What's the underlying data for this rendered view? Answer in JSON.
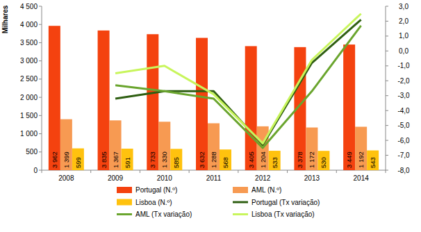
{
  "chart_data": {
    "type": "bar",
    "y_label": "Milhares",
    "categories": [
      "2008",
      "2009",
      "2010",
      "2011",
      "2012",
      "2013",
      "2014"
    ],
    "ylim": [
      0,
      4500
    ],
    "yticks": [
      0,
      500,
      {
        "value": 1000,
        "label": "1 000"
      },
      {
        "value": 1500,
        "label": "1 500"
      },
      {
        "value": 2000,
        "label": "2 000"
      },
      {
        "value": 2500,
        "label": "2 500"
      },
      {
        "value": 3000,
        "label": "3 000"
      },
      {
        "value": 3500,
        "label": "3 500"
      },
      {
        "value": 4000,
        "label": "4 000"
      },
      {
        "value": 4500,
        "label": "4 500"
      }
    ],
    "y2lim": [
      -8,
      3
    ],
    "y2ticks": [
      {
        "value": 3,
        "label": "3,0"
      },
      {
        "value": 2,
        "label": "2,0"
      },
      {
        "value": 1,
        "label": "1,0"
      },
      {
        "value": 0,
        "label": "0,0"
      },
      {
        "value": -1,
        "label": "-1,0"
      },
      {
        "value": -2,
        "label": "-2,0"
      },
      {
        "value": -3,
        "label": "-3,0"
      },
      {
        "value": -4,
        "label": "-4,0"
      },
      {
        "value": -5,
        "label": "-5,0"
      },
      {
        "value": -6,
        "label": "-6,0"
      },
      {
        "value": -7,
        "label": "-7,0"
      },
      {
        "value": -8,
        "label": "-8,0"
      }
    ],
    "grid": false,
    "legend": "bottom",
    "data_labels": true,
    "series": [
      {
        "name": "Portugal (N.º)",
        "type": "bar",
        "color": "#f4420f",
        "values": [
          3962,
          3835,
          3733,
          3632,
          3405,
          3378,
          3449
        ],
        "value_labels": [
          "3 962",
          "3 835",
          "3 733",
          "3 632",
          "3 405",
          "3 378",
          "3 449"
        ]
      },
      {
        "name": "AML (N.º)",
        "type": "bar",
        "color": "#f79a52",
        "values": [
          1399,
          1367,
          1330,
          1288,
          1204,
          1172,
          1192
        ],
        "value_labels": [
          "1 399",
          "1 367",
          "1 330",
          "1 288",
          "1 204",
          "1 172",
          "1 192"
        ]
      },
      {
        "name": "Lisboa (N.º)",
        "type": "bar",
        "color": "#ffc20e",
        "values": [
          599,
          591,
          585,
          568,
          533,
          530,
          543
        ]
      },
      {
        "name": "Portugal (Tx variação)",
        "type": "line",
        "axis": "y2",
        "color": "#2f5f12",
        "values": [
          null,
          -3.2,
          -2.7,
          -2.7,
          -6.3,
          -0.8,
          2.1
        ]
      },
      {
        "name": "AML (Tx variação)",
        "type": "line",
        "axis": "y2",
        "color": "#6aa52e",
        "values": [
          null,
          -2.3,
          -2.7,
          -3.2,
          -6.5,
          -2.7,
          1.7
        ]
      },
      {
        "name": "Lisboa (Tx variação)",
        "type": "line",
        "axis": "y2",
        "color": "#c8f55c",
        "values": [
          null,
          -1.5,
          -1.0,
          -2.9,
          -6.2,
          -0.6,
          2.5
        ]
      }
    ]
  }
}
